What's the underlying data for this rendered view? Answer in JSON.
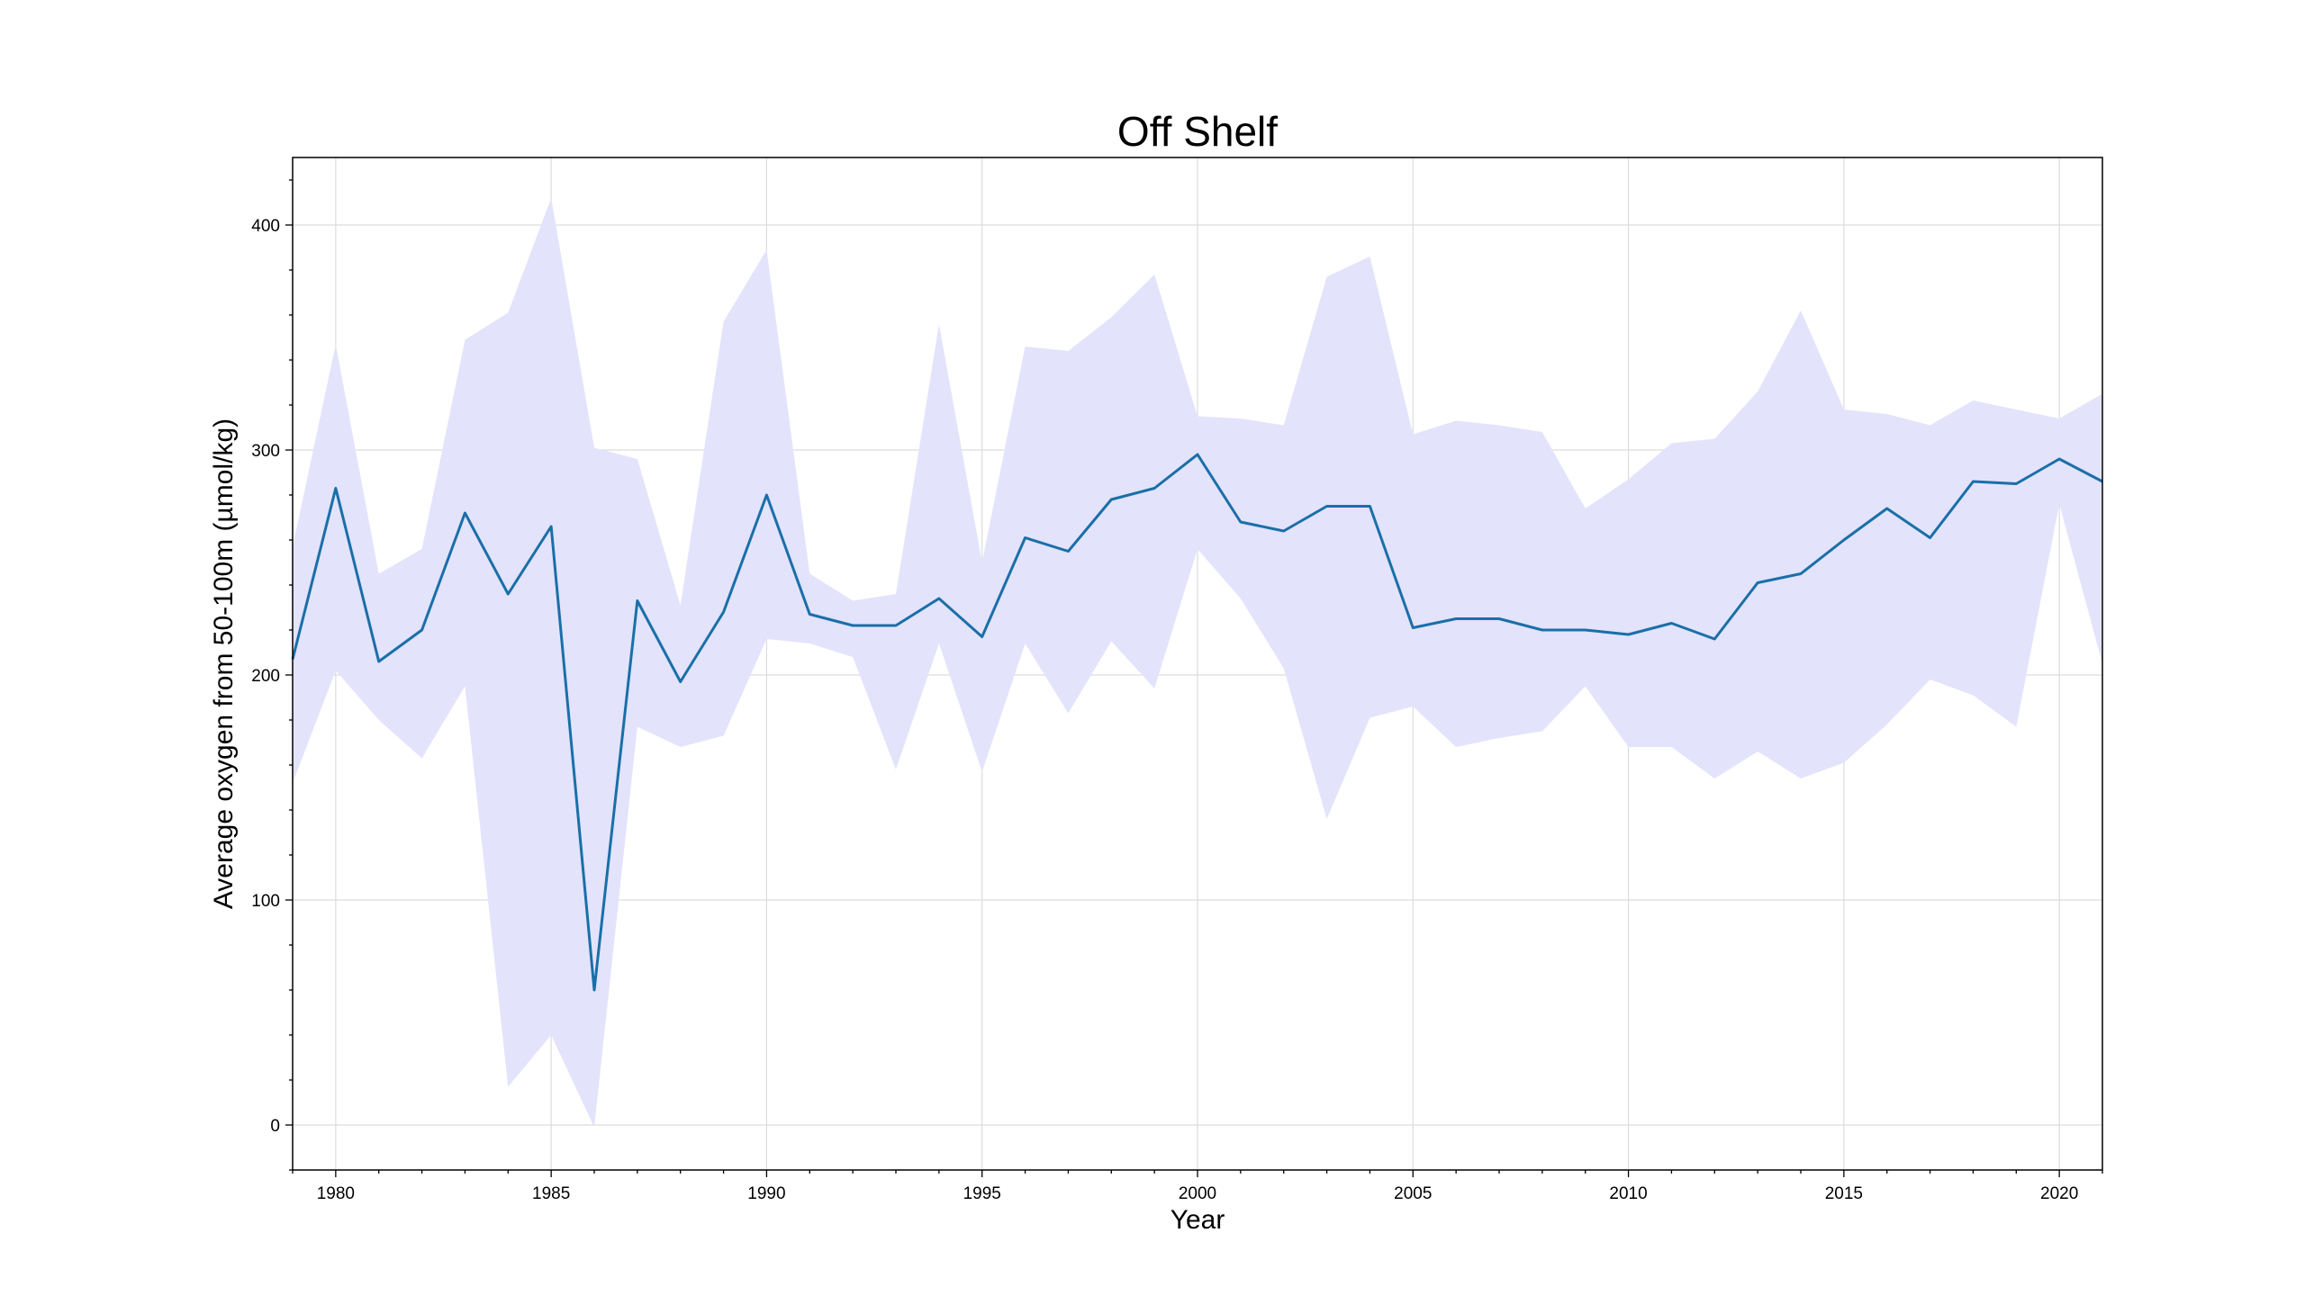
{
  "chart_data": {
    "type": "line",
    "title": "Off Shelf",
    "xlabel": "Year",
    "ylabel": "Average oxygen from 50-100m (µmol/kg)",
    "xlim": [
      1979,
      2021
    ],
    "ylim": [
      -20,
      430
    ],
    "xticks": [
      1980,
      1985,
      1990,
      1995,
      2000,
      2005,
      2010,
      2015,
      2020
    ],
    "yticks": [
      0,
      100,
      200,
      300,
      400
    ],
    "grid": true,
    "colors": {
      "line": "#1a6fa8",
      "band": "#e3e3fc"
    },
    "x": [
      1979,
      1980,
      1981,
      1982,
      1983,
      1984,
      1985,
      1986,
      1987,
      1988,
      1989,
      1990,
      1991,
      1992,
      1993,
      1994,
      1995,
      1996,
      1997,
      1998,
      1999,
      2000,
      2001,
      2002,
      2003,
      2004,
      2005,
      2006,
      2007,
      2008,
      2009,
      2010,
      2011,
      2012,
      2013,
      2014,
      2015,
      2016,
      2017,
      2018,
      2019,
      2020,
      2021
    ],
    "series": [
      {
        "type": "line",
        "values": [
          207,
          283,
          206,
          220,
          272,
          236,
          266,
          60,
          233,
          197,
          228,
          280,
          227,
          222,
          222,
          234,
          217,
          261,
          255,
          278,
          283,
          298,
          268,
          264,
          275,
          275,
          221,
          225,
          225,
          220,
          220,
          218,
          223,
          216,
          241,
          245,
          260,
          274,
          261,
          286,
          285,
          296,
          286
        ]
      },
      {
        "type": "band-upper",
        "values": [
          257,
          347,
          245,
          256,
          349,
          361,
          412,
          301,
          296,
          231,
          357,
          389,
          245,
          233,
          236,
          356,
          250,
          346,
          344,
          359,
          378,
          315,
          314,
          311,
          377,
          386,
          307,
          313,
          311,
          308,
          274,
          287,
          303,
          305,
          326,
          362,
          318,
          316,
          311,
          322,
          318,
          314,
          325
        ]
      },
      {
        "type": "band-lower",
        "values": [
          152,
          202,
          180,
          163,
          195,
          17,
          40,
          -1,
          177,
          168,
          173,
          216,
          214,
          208,
          158,
          214,
          157,
          214,
          183,
          215,
          194,
          256,
          234,
          203,
          136,
          181,
          186,
          168,
          172,
          175,
          195,
          168,
          168,
          154,
          166,
          154,
          161,
          178,
          198,
          191,
          177,
          276,
          205
        ]
      }
    ]
  }
}
